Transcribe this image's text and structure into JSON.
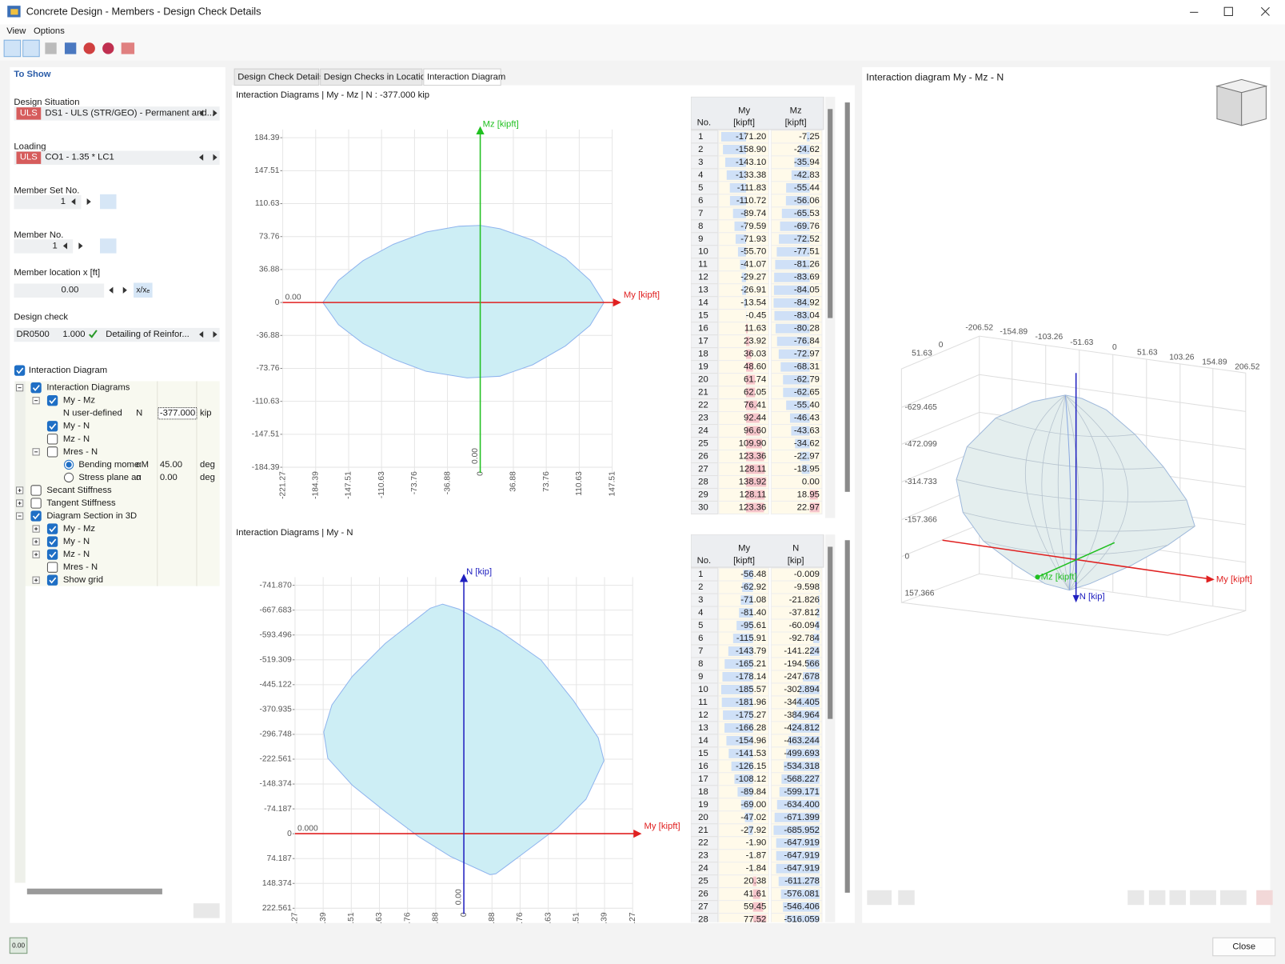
{
  "window": {
    "title": "Concrete Design - Members - Design Check Details",
    "close": "Close",
    "status": "0.00"
  },
  "menu": [
    "View",
    "Options"
  ],
  "panel": {
    "heading": "To Show",
    "design_situation": {
      "label": "Design Situation",
      "tag": "ULS",
      "value": "DS1 - ULS (STR/GEO) - Permanent and..."
    },
    "loading": {
      "label": "Loading",
      "tag": "ULS",
      "value": "CO1 - 1.35 * LC1"
    },
    "member_set": {
      "label": "Member Set No.",
      "value": "1"
    },
    "member": {
      "label": "Member No.",
      "value": "1"
    },
    "location": {
      "label": "Member location x [ft]",
      "value": "0.00",
      "button": "x/xₑ"
    },
    "design_check": {
      "label": "Design check",
      "code": "DR0500",
      "ratio": "1.000",
      "description": "Detailing of Reinfor..."
    },
    "interaction": {
      "label": "Interaction Diagram",
      "checked": true
    },
    "tree": [
      {
        "label": "Interaction Diagrams",
        "checked": true,
        "expanded": true,
        "children": [
          {
            "label": "My - Mz",
            "checked": true,
            "expanded": true,
            "children": [
              {
                "label": "N user-defined",
                "symbol": "N",
                "value": "-377.000",
                "unit": "kip"
              }
            ]
          },
          {
            "label": "My - N",
            "checked": true
          },
          {
            "label": "Mz - N",
            "checked": false
          },
          {
            "label": "Mres - N",
            "checked": false,
            "expanded": true,
            "children": [
              {
                "label": "Bending mome",
                "selected": true,
                "symbol": "αM",
                "value": "45.00",
                "unit": "deg"
              },
              {
                "label": "Stress plane an",
                "selected": false,
                "symbol": "α",
                "value": "0.00",
                "unit": "deg"
              }
            ]
          }
        ]
      },
      {
        "label": "Secant Stiffness",
        "checked": false,
        "expanded": false
      },
      {
        "label": "Tangent Stiffness",
        "checked": false,
        "expanded": false
      },
      {
        "label": "Diagram Section in 3D",
        "checked": true,
        "expanded": true,
        "children": [
          {
            "label": "My - Mz",
            "checked": true,
            "expanded": false
          },
          {
            "label": "My - N",
            "checked": true,
            "expanded": false
          },
          {
            "label": "Mz - N",
            "checked": true,
            "expanded": false
          },
          {
            "label": "Mres - N",
            "checked": false
          },
          {
            "label": "Show grid",
            "checked": true,
            "expanded": false
          }
        ]
      }
    ]
  },
  "tabs": [
    {
      "label": "Design Check Details"
    },
    {
      "label": "Design Checks in Location"
    },
    {
      "label": "Interaction Diagram",
      "active": true
    }
  ],
  "diagram_my_mz": {
    "title": "Interaction Diagrams | My - Mz | N : -377.000 kip",
    "x_label": "My [kipft]",
    "y_label": "Mz [kipft]",
    "origin_label": "0.00",
    "axis_value": "0.00",
    "yticks": [
      "184.39",
      "147.51",
      "110.63",
      "73.76",
      "36.88",
      "0",
      "-36.88",
      "-73.76",
      "-110.63",
      "-147.51",
      "-184.39"
    ],
    "xticks": [
      "-221.27",
      "-184.39",
      "-147.51",
      "-110.63",
      "-73.76",
      "-36.88",
      "0",
      "36.88",
      "73.76",
      "110.63",
      "147.51"
    ],
    "table": {
      "no": "No.",
      "col1": [
        "My",
        "[kipft]"
      ],
      "col2": [
        "Mz",
        "[kipft]"
      ],
      "rows": [
        [
          "1",
          "-171.20",
          "-7.25"
        ],
        [
          "2",
          "-158.90",
          "-24.62"
        ],
        [
          "3",
          "-143.10",
          "-35.94"
        ],
        [
          "4",
          "-133.38",
          "-42.83"
        ],
        [
          "5",
          "-111.83",
          "-55.44"
        ],
        [
          "6",
          "-110.72",
          "-56.06"
        ],
        [
          "7",
          "-89.74",
          "-65.53"
        ],
        [
          "8",
          "-79.59",
          "-69.76"
        ],
        [
          "9",
          "-71.93",
          "-72.52"
        ],
        [
          "10",
          "-55.70",
          "-77.51"
        ],
        [
          "11",
          "-41.07",
          "-81.26"
        ],
        [
          "12",
          "-29.27",
          "-83.69"
        ],
        [
          "13",
          "-26.91",
          "-84.05"
        ],
        [
          "14",
          "-13.54",
          "-84.92"
        ],
        [
          "15",
          "-0.45",
          "-83.04"
        ],
        [
          "16",
          "11.63",
          "-80.28"
        ],
        [
          "17",
          "23.92",
          "-76.84"
        ],
        [
          "18",
          "36.03",
          "-72.97"
        ],
        [
          "19",
          "48.60",
          "-68.31"
        ],
        [
          "20",
          "61.74",
          "-62.79"
        ],
        [
          "21",
          "62.05",
          "-62.65"
        ],
        [
          "22",
          "76.41",
          "-55.40"
        ],
        [
          "23",
          "92.44",
          "-46.43"
        ],
        [
          "24",
          "96.60",
          "-43.63"
        ],
        [
          "25",
          "109.90",
          "-34.62"
        ],
        [
          "26",
          "123.36",
          "-22.97"
        ],
        [
          "27",
          "128.11",
          "-18.95"
        ],
        [
          "28",
          "138.92",
          "0.00"
        ],
        [
          "29",
          "128.11",
          "18.95"
        ],
        [
          "30",
          "123.36",
          "22.97"
        ]
      ]
    }
  },
  "diagram_my_n": {
    "title": "Interaction Diagrams | My - N",
    "x_label": "My [kipft]",
    "y_label": "N [kip]",
    "origin_label": "0.000",
    "axis_value": "0.00",
    "yticks": [
      "-741.870",
      "-667.683",
      "-593.496",
      "-519.309",
      "-445.122",
      "-370.935",
      "-296.748",
      "-222.561",
      "-148.374",
      "-74.187",
      "0",
      "74.187",
      "148.374",
      "222.561"
    ],
    "xticks": [
      ".27",
      ".39",
      ".51",
      ".63",
      ".76",
      ".88",
      "0",
      ".88",
      ".76",
      ".63",
      ".51",
      ".39",
      ".27"
    ],
    "table": {
      "no": "No.",
      "col1": [
        "My",
        "[kipft]"
      ],
      "col2": [
        "N",
        "[kip]"
      ],
      "rows": [
        [
          "1",
          "-56.48",
          "-0.009"
        ],
        [
          "2",
          "-62.92",
          "-9.598"
        ],
        [
          "3",
          "-71.08",
          "-21.826"
        ],
        [
          "4",
          "-81.40",
          "-37.812"
        ],
        [
          "5",
          "-95.61",
          "-60.094"
        ],
        [
          "6",
          "-115.91",
          "-92.784"
        ],
        [
          "7",
          "-143.79",
          "-141.224"
        ],
        [
          "8",
          "-165.21",
          "-194.566"
        ],
        [
          "9",
          "-178.14",
          "-247.678"
        ],
        [
          "10",
          "-185.57",
          "-302.894"
        ],
        [
          "11",
          "-181.96",
          "-344.405"
        ],
        [
          "12",
          "-175.27",
          "-384.964"
        ],
        [
          "13",
          "-166.28",
          "-424.812"
        ],
        [
          "14",
          "-154.96",
          "-463.244"
        ],
        [
          "15",
          "-141.53",
          "-499.693"
        ],
        [
          "16",
          "-126.15",
          "-534.318"
        ],
        [
          "17",
          "-108.12",
          "-568.227"
        ],
        [
          "18",
          "-89.84",
          "-599.171"
        ],
        [
          "19",
          "-69.00",
          "-634.400"
        ],
        [
          "20",
          "-47.02",
          "-671.399"
        ],
        [
          "21",
          "-27.92",
          "-685.952"
        ],
        [
          "22",
          "-1.90",
          "-647.919"
        ],
        [
          "23",
          "-1.87",
          "-647.919"
        ],
        [
          "24",
          "-1.84",
          "-647.919"
        ],
        [
          "25",
          "20.38",
          "-611.278"
        ],
        [
          "26",
          "41.61",
          "-576.081"
        ],
        [
          "27",
          "59.45",
          "-546.406"
        ],
        [
          "28",
          "77.52",
          "-516.059"
        ]
      ]
    }
  },
  "view_3d": {
    "title": "Interaction diagram My - Mz - N",
    "x_label": "My [kipft]",
    "y_label": "Mz [kipft]",
    "z_label": "N [kip]",
    "top_ticks": [
      "-206.52",
      "-154.89",
      "-103.26",
      "-51.63",
      "0",
      "51.63",
      "103.26",
      "154.89",
      "206.52"
    ],
    "side_ticks": [
      "51.63",
      "0"
    ],
    "vertical_ticks": [
      "-629.465",
      "-472.099",
      "-314.733",
      "-157.366",
      "0",
      "157.366"
    ]
  }
}
